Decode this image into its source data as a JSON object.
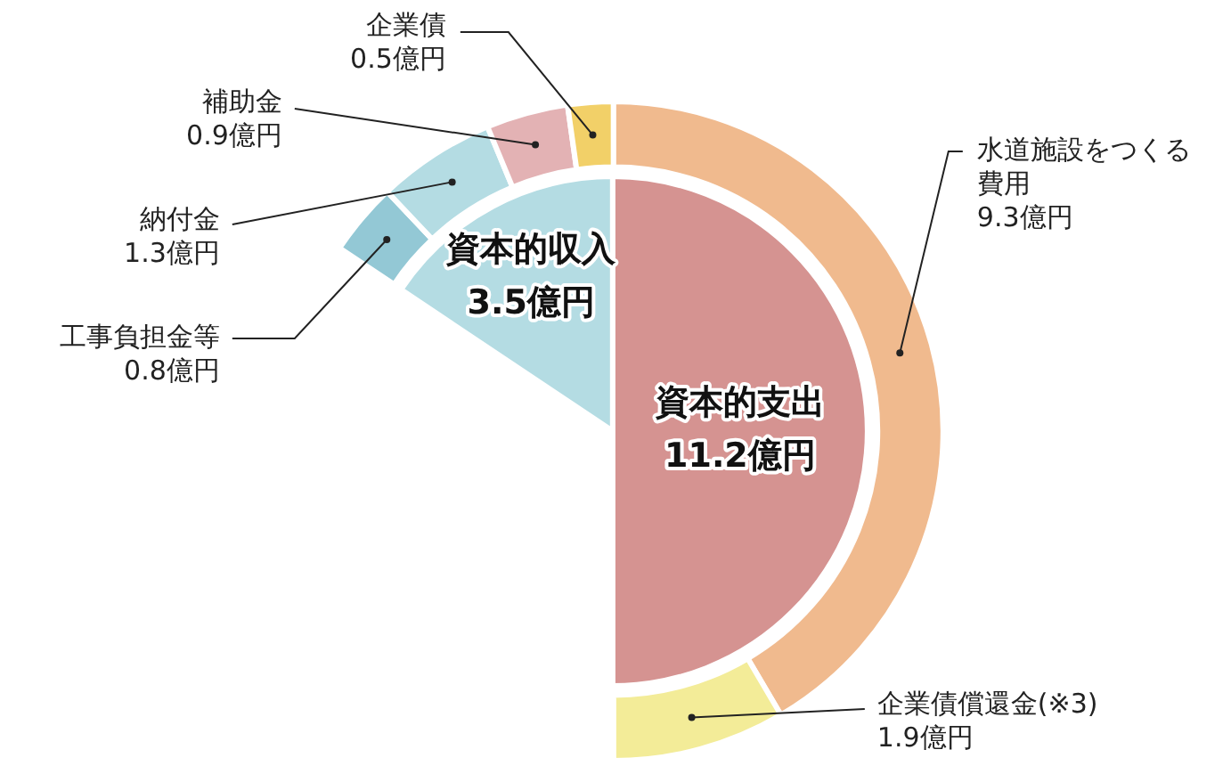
{
  "chart_data": [
    {
      "type": "pie",
      "categories": [
        "資本的収入",
        "資本的支出"
      ],
      "values": [
        3.5,
        11.2
      ],
      "value_labels": [
        "3.5億円",
        "11.2億円"
      ],
      "colors": [
        "#b4dce3",
        "#d59391"
      ]
    },
    {
      "type": "donut",
      "categories": [
        "工事負担金等",
        "納付金",
        "補助金",
        "企業債",
        "水道施設をつくる費用",
        "企業債償還金(※3)"
      ],
      "values": [
        0.8,
        1.3,
        0.9,
        0.5,
        9.3,
        1.9
      ],
      "value_labels": [
        "0.8億円",
        "1.3億円",
        "0.9億円",
        "0.5億円",
        "9.3億円",
        "1.9億円"
      ],
      "colors": [
        "#93c8d5",
        "#b4dce3",
        "#e3b2b4",
        "#f2d068",
        "#f0ba8e",
        "#f3ec98"
      ]
    }
  ]
}
